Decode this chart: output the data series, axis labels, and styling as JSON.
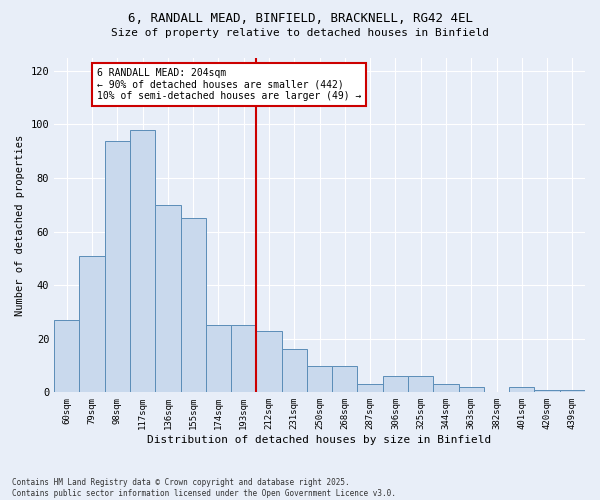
{
  "title_line1": "6, RANDALL MEAD, BINFIELD, BRACKNELL, RG42 4EL",
  "title_line2": "Size of property relative to detached houses in Binfield",
  "xlabel": "Distribution of detached houses by size in Binfield",
  "ylabel": "Number of detached properties",
  "categories": [
    "60sqm",
    "79sqm",
    "98sqm",
    "117sqm",
    "136sqm",
    "155sqm",
    "174sqm",
    "193sqm",
    "212sqm",
    "231sqm",
    "250sqm",
    "268sqm",
    "287sqm",
    "306sqm",
    "325sqm",
    "344sqm",
    "363sqm",
    "382sqm",
    "401sqm",
    "420sqm",
    "439sqm"
  ],
  "values": [
    27,
    51,
    94,
    98,
    70,
    65,
    25,
    25,
    23,
    16,
    10,
    10,
    3,
    6,
    6,
    3,
    2,
    0,
    2,
    1,
    1
  ],
  "bar_color": "#c9d9ed",
  "bar_edge_color": "#5b8db8",
  "vline_x_index": 8,
  "vline_color": "#cc0000",
  "annotation_title": "6 RANDALL MEAD: 204sqm",
  "annotation_line1": "← 90% of detached houses are smaller (442)",
  "annotation_line2": "10% of semi-detached houses are larger (49) →",
  "annotation_box_color": "#cc0000",
  "ylim": [
    0,
    125
  ],
  "yticks": [
    0,
    20,
    40,
    60,
    80,
    100,
    120
  ],
  "background_color": "#e8eef8",
  "grid_color": "#ffffff",
  "footer_line1": "Contains HM Land Registry data © Crown copyright and database right 2025.",
  "footer_line2": "Contains public sector information licensed under the Open Government Licence v3.0."
}
